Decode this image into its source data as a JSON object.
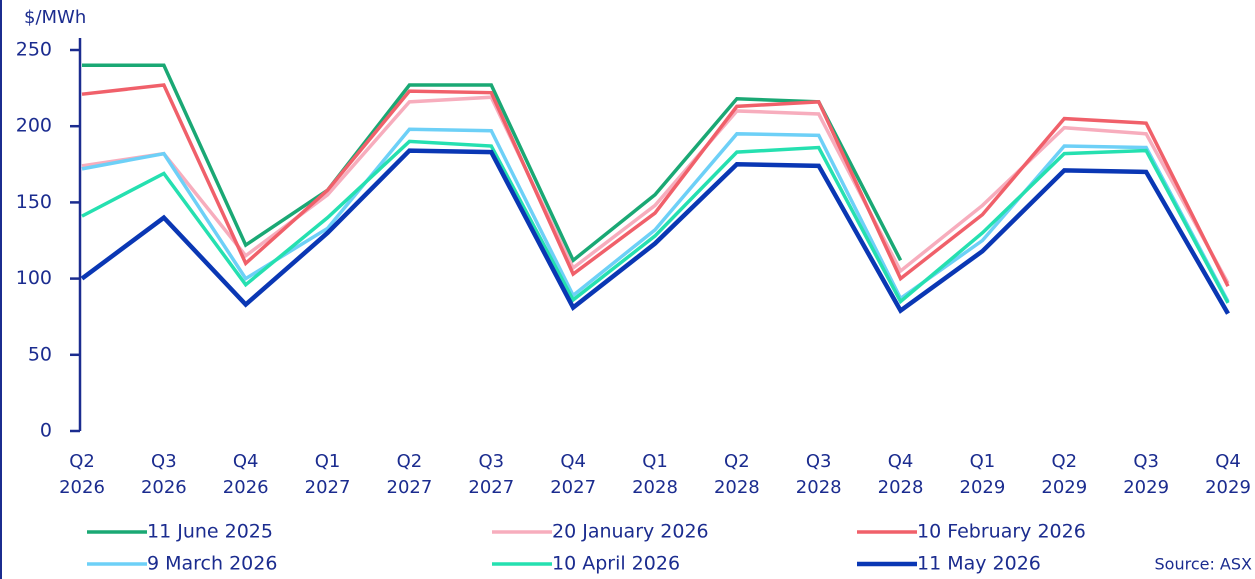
{
  "chart_data": {
    "type": "line",
    "y_label": "$/MWh",
    "source": "Source: ASX",
    "categories": [
      "Q2 2026",
      "Q3 2026",
      "Q4 2026",
      "Q1 2027",
      "Q2 2027",
      "Q3 2027",
      "Q4 2027",
      "Q1 2028",
      "Q2 2028",
      "Q3 2028",
      "Q4 2028",
      "Q1 2029",
      "Q2 2029",
      "Q3 2029",
      "Q4 2029"
    ],
    "ylim": [
      0,
      250
    ],
    "yticks": [
      0,
      50,
      100,
      150,
      200,
      250
    ],
    "grid": false,
    "series": [
      {
        "name": "11 June 2025",
        "color": "#1aa874",
        "values": [
          240,
          240,
          122,
          158,
          227,
          227,
          112,
          155,
          218,
          216,
          112,
          null,
          null,
          null,
          null
        ]
      },
      {
        "name": "20 January 2026",
        "color": "#f7adbd",
        "values": [
          174,
          182,
          115,
          155,
          216,
          219,
          107,
          148,
          210,
          208,
          105,
          148,
          199,
          195,
          97
        ]
      },
      {
        "name": "10 February 2026",
        "color": "#f0606a",
        "values": [
          221,
          227,
          110,
          158,
          223,
          222,
          103,
          143,
          213,
          216,
          100,
          142,
          205,
          202,
          95
        ]
      },
      {
        "name": "9 March 2026",
        "color": "#6dd0f7",
        "values": [
          172,
          182,
          100,
          133,
          198,
          197,
          89,
          132,
          195,
          194,
          87,
          125,
          187,
          186,
          85
        ]
      },
      {
        "name": "10 April 2026",
        "color": "#25e0b0",
        "values": [
          141,
          169,
          96,
          140,
          190,
          187,
          86,
          128,
          183,
          186,
          85,
          130,
          182,
          184,
          84
        ]
      },
      {
        "name": "11 May 2026",
        "color": "#0a37b4",
        "values": [
          100,
          140,
          83,
          130,
          184,
          183,
          81,
          123,
          175,
          174,
          79,
          118,
          171,
          170,
          77
        ]
      }
    ]
  }
}
